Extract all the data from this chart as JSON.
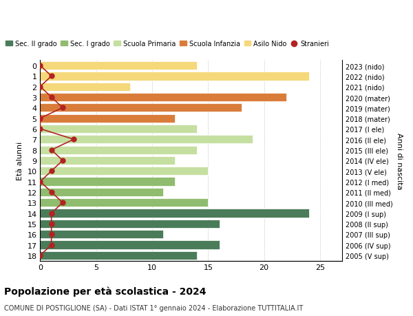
{
  "ages": [
    18,
    17,
    16,
    15,
    14,
    13,
    12,
    11,
    10,
    9,
    8,
    7,
    6,
    5,
    4,
    3,
    2,
    1,
    0
  ],
  "years": [
    "2005 (V sup)",
    "2006 (IV sup)",
    "2007 (III sup)",
    "2008 (II sup)",
    "2009 (I sup)",
    "2010 (III med)",
    "2011 (II med)",
    "2012 (I med)",
    "2013 (V ele)",
    "2014 (IV ele)",
    "2015 (III ele)",
    "2016 (II ele)",
    "2017 (I ele)",
    "2018 (mater)",
    "2019 (mater)",
    "2020 (mater)",
    "2021 (nido)",
    "2022 (nido)",
    "2023 (nido)"
  ],
  "bar_values": [
    14,
    16,
    11,
    16,
    24,
    15,
    11,
    12,
    15,
    12,
    14,
    19,
    14,
    12,
    18,
    22,
    8,
    24,
    14
  ],
  "stranieri": [
    0,
    1,
    1,
    1,
    1,
    2,
    1,
    0,
    1,
    2,
    1,
    3,
    0,
    0,
    2,
    1,
    0,
    1,
    0
  ],
  "bar_colors": [
    "#4a7c59",
    "#4a7c59",
    "#4a7c59",
    "#4a7c59",
    "#4a7c59",
    "#8fbc6e",
    "#8fbc6e",
    "#8fbc6e",
    "#c5dfa0",
    "#c5dfa0",
    "#c5dfa0",
    "#c5dfa0",
    "#c5dfa0",
    "#d97c3a",
    "#d97c3a",
    "#d97c3a",
    "#f5d87a",
    "#f5d87a",
    "#f5d87a"
  ],
  "legend_labels": [
    "Sec. II grado",
    "Sec. I grado",
    "Scuola Primaria",
    "Scuola Infanzia",
    "Asilo Nido",
    "Stranieri"
  ],
  "legend_colors": [
    "#4a7c59",
    "#8fbc6e",
    "#c5dfa0",
    "#d97c3a",
    "#f5d87a",
    "#b22222"
  ],
  "ylabel_left": "Età alunni",
  "ylabel_right": "Anni di nascita",
  "title": "Popolazione per età scolastica - 2024",
  "subtitle": "COMUNE DI POSTIGLIONE (SA) - Dati ISTAT 1° gennaio 2024 - Elaborazione TUTTITALIA.IT",
  "xlim": [
    0,
    27
  ],
  "xticks": [
    0,
    5,
    10,
    15,
    20,
    25
  ],
  "bg_color": "#ffffff",
  "grid_color": "#cccccc",
  "stranieri_color": "#b22222"
}
